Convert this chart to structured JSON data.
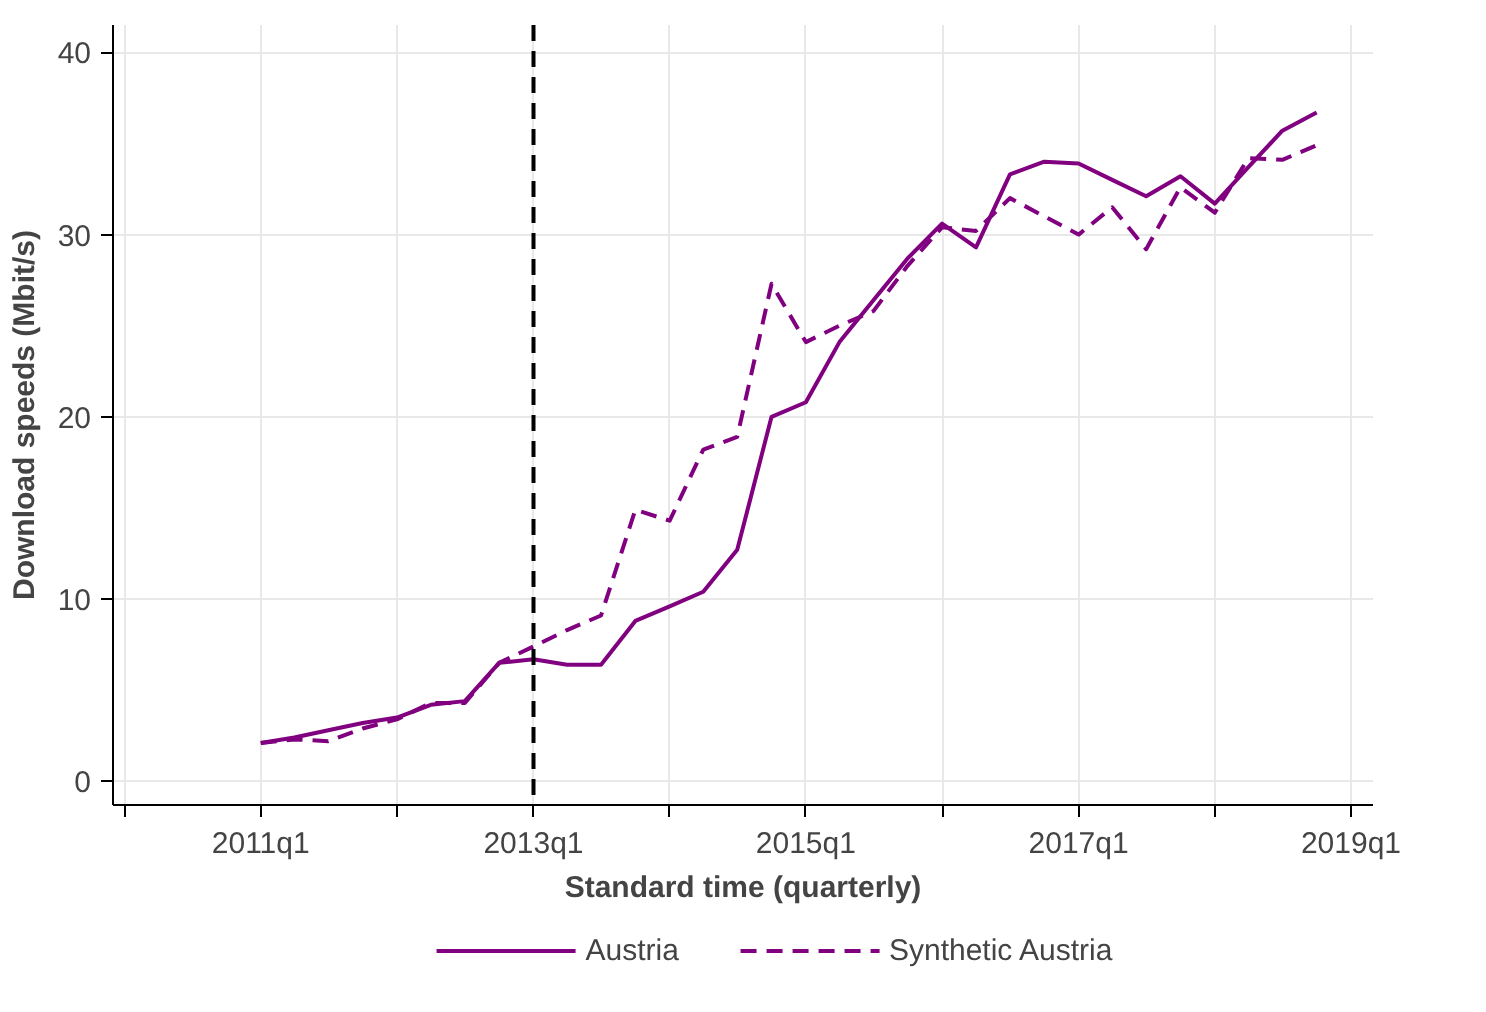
{
  "chart_data": {
    "type": "line",
    "xlabel": "Standard time (quarterly)",
    "ylabel": "Download speeds (Mbit/s)",
    "x": [
      "2011-01",
      "2011-04",
      "2011-07",
      "2011-10",
      "2012-01",
      "2012-04",
      "2012-07",
      "2012-10",
      "2013-01",
      "2013-04",
      "2013-07",
      "2013-10",
      "2014-01",
      "2014-04",
      "2014-07",
      "2014-10",
      "2015-01",
      "2015-04",
      "2015-07",
      "2015-10",
      "2016-01",
      "2016-04",
      "2016-07",
      "2016-10",
      "2017-01",
      "2017-04",
      "2017-07",
      "2017-10",
      "2018-01",
      "2018-04",
      "2018-07",
      "2018-10"
    ],
    "series": [
      {
        "name": "Austria",
        "color": "#800080",
        "line_style": "solid",
        "values": [
          2.1,
          2.4,
          2.8,
          3.2,
          3.5,
          4.2,
          4.4,
          6.5,
          6.7,
          6.4,
          6.4,
          8.8,
          9.6,
          10.4,
          12.7,
          20.0,
          20.8,
          24.1,
          26.4,
          28.7,
          30.6,
          29.3,
          33.3,
          34.0,
          33.9,
          33.0,
          32.1,
          33.2,
          31.7,
          33.7,
          35.7,
          36.7
        ]
      },
      {
        "name": "Synthetic Austria",
        "color": "#800080",
        "line_style": "dashed",
        "values": [
          2.1,
          2.3,
          2.2,
          2.9,
          3.4,
          4.3,
          4.3,
          6.5,
          7.4,
          8.3,
          9.1,
          14.9,
          14.3,
          18.2,
          18.9,
          27.3,
          24.1,
          25.0,
          25.8,
          28.3,
          30.4,
          30.2,
          32.0,
          31.0,
          30.0,
          31.5,
          29.2,
          32.6,
          31.2,
          34.2,
          34.1,
          34.9
        ]
      }
    ],
    "xlim": [
      "2009-12",
      "2019-03"
    ],
    "xticks": [
      {
        "value": "2010-01",
        "label": null
      },
      {
        "value": "2011-01",
        "label": "2011q1"
      },
      {
        "value": "2012-01",
        "label": null
      },
      {
        "value": "2013-01",
        "label": "2013q1"
      },
      {
        "value": "2014-01",
        "label": null
      },
      {
        "value": "2015-01",
        "label": "2015q1"
      },
      {
        "value": "2016-01",
        "label": null
      },
      {
        "value": "2017-01",
        "label": "2017q1"
      },
      {
        "value": "2018-01",
        "label": null
      },
      {
        "value": "2019-01",
        "label": "2019q1"
      }
    ],
    "ylim": [
      -1.3,
      41.5
    ],
    "yticks": [
      0,
      10,
      20,
      30,
      40
    ],
    "ref_lines": [
      {
        "axis": "x",
        "value": "2013-01",
        "color": "#000000",
        "line_style": "dashed"
      }
    ],
    "grid": true,
    "legend": "bottom",
    "marker": "none"
  }
}
